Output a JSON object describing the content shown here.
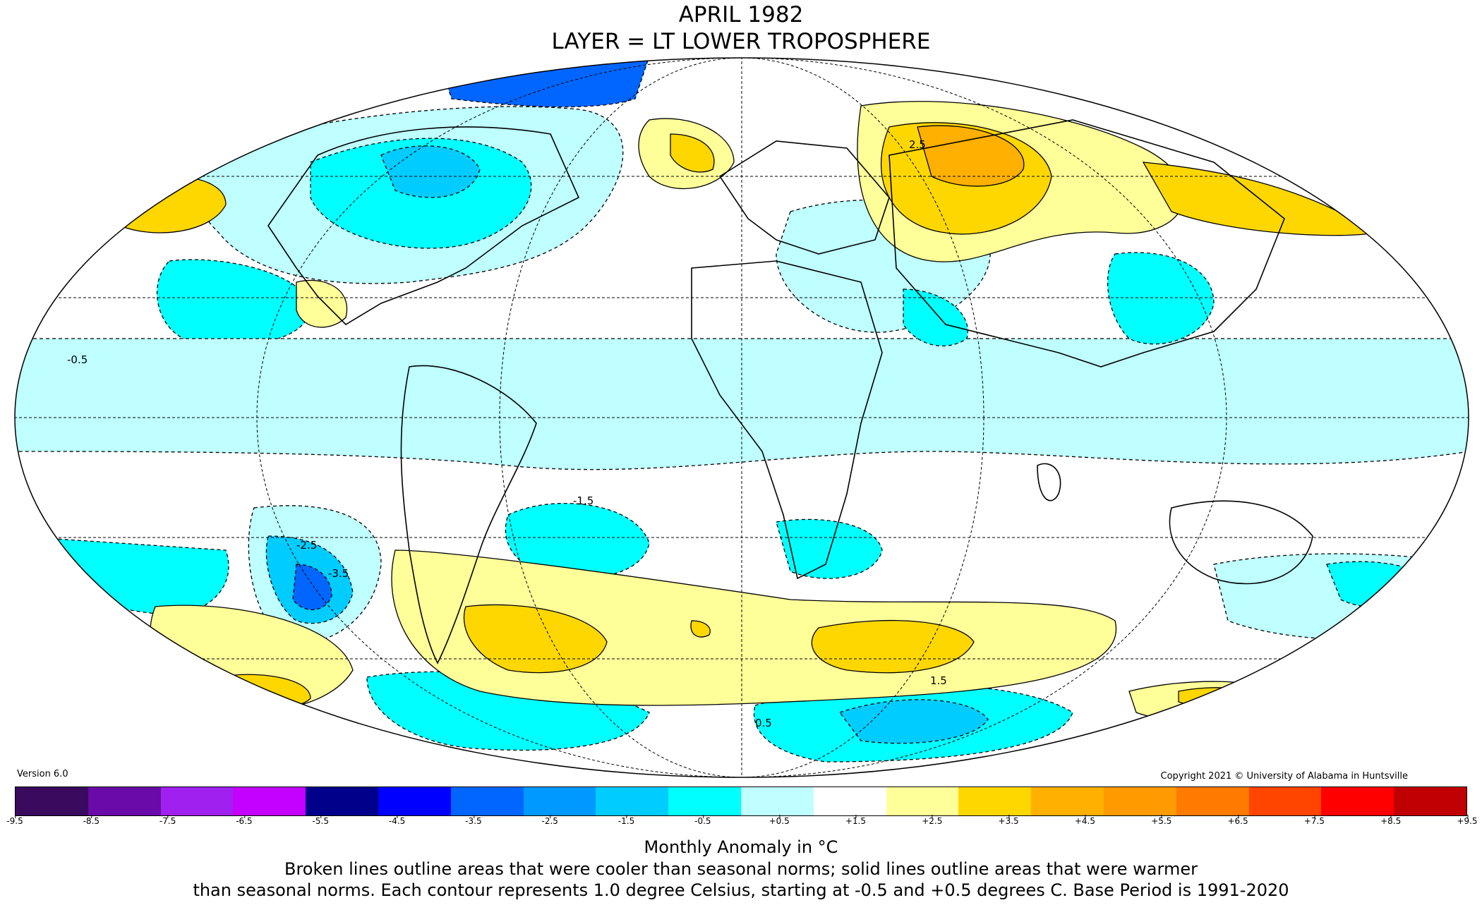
{
  "header": {
    "title": "APRIL 1982",
    "subtitle": "LAYER = LT LOWER TROPOSPHERE"
  },
  "footer": {
    "version": "Version 6.0",
    "copyright": "Copyright 2021 © University of Alabama in Huntsville",
    "unit_label": "Monthly Anomaly in °C",
    "note_line1": "Broken lines outline areas that were cooler than seasonal norms; solid lines outline areas that were warmer",
    "note_line2": "than seasonal norms. Each contour represents 1.0 degree Celsius, starting at -0.5 and +0.5 degrees C. Base Period is 1991-2020"
  },
  "colorbar": {
    "ticks": [
      "-9.5",
      "-8.5",
      "-7.5",
      "-6.5",
      "-5.5",
      "-4.5",
      "-3.5",
      "-2.5",
      "-1.5",
      "-0.5",
      "+0.5",
      "+1.5",
      "+2.5",
      "+3.5",
      "+4.5",
      "+5.5",
      "+6.5",
      "+7.5",
      "+8.5",
      "+9.5"
    ],
    "colors": [
      "#3a0a5e",
      "#6a0aa8",
      "#a020f0",
      "#c400ff",
      "#00008b",
      "#0000ff",
      "#0066ff",
      "#0099ff",
      "#00ccff",
      "#00ffff",
      "#bfffff",
      "#ffffff",
      "#ffff99",
      "#ffd700",
      "#ffb000",
      "#ff9a00",
      "#ff7a00",
      "#ff4500",
      "#ff0000",
      "#c00000"
    ]
  },
  "map": {
    "projection": "mollweide",
    "contour_labels": [
      {
        "text": "-3.5"
      },
      {
        "text": "-2.5"
      },
      {
        "text": "-1.5"
      },
      {
        "text": "-0.5"
      },
      {
        "text": "0.5"
      },
      {
        "text": "1.5"
      },
      {
        "text": "2.5"
      }
    ]
  }
}
